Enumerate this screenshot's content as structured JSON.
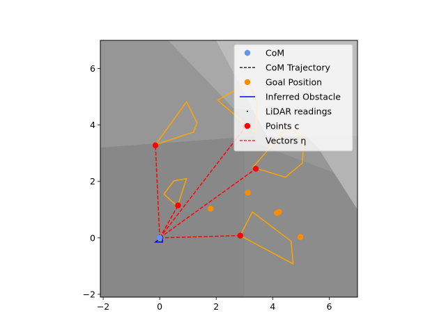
{
  "chart_data": {
    "type": "scatter",
    "xlim": [
      -2.1,
      7.0
    ],
    "ylim": [
      -2.1,
      7.0
    ],
    "xticks": [
      -2,
      0,
      2,
      4,
      6
    ],
    "yticks": [
      -2,
      0,
      2,
      4,
      6
    ],
    "grid": false,
    "legend_position": "top-right",
    "colors": {
      "com": "#6495ed",
      "trajectory": "#000000",
      "goal": "#ff8c00",
      "obstacle": "#ffa500",
      "inferred": "#0000ff",
      "lidar": "#008000",
      "points_c": "#ff0000",
      "vectors": "#ff0000"
    },
    "legend": [
      {
        "label": "CoM",
        "kind": "marker",
        "color": "#6495ed"
      },
      {
        "label": "CoM Trajectory",
        "kind": "dashed",
        "color": "#000000"
      },
      {
        "label": "Goal Position",
        "kind": "marker",
        "color": "#ff8c00"
      },
      {
        "label": "Inferred Obstacle",
        "kind": "solid",
        "color": "#0000ff"
      },
      {
        "label": "LiDAR readings",
        "kind": "dot",
        "color": "#008000"
      },
      {
        "label": "Points c",
        "kind": "marker",
        "color": "#ff0000"
      },
      {
        "label": "Vectors η",
        "kind": "dashed",
        "color": "#ff0000"
      }
    ],
    "com": {
      "x": 0.0,
      "y": 0.0
    },
    "goals": [
      {
        "x": 1.8,
        "y": 1.03
      },
      {
        "x": 3.12,
        "y": 1.6
      },
      {
        "x": 4.15,
        "y": 0.88
      },
      {
        "x": 4.22,
        "y": 0.92
      },
      {
        "x": 4.98,
        "y": 0.03
      }
    ],
    "points_c": [
      {
        "x": -0.15,
        "y": 3.28
      },
      {
        "x": 0.65,
        "y": 1.15
      },
      {
        "x": 3.4,
        "y": 2.45
      },
      {
        "x": 2.85,
        "y": 0.08
      },
      {
        "x": 3.05,
        "y": 3.95
      }
    ],
    "obstacles": [
      [
        [
          -0.15,
          3.3
        ],
        [
          0.95,
          4.82
        ],
        [
          1.32,
          4.08
        ],
        [
          1.2,
          3.75
        ]
      ],
      [
        [
          0.15,
          1.55
        ],
        [
          0.5,
          2.02
        ],
        [
          0.95,
          2.1
        ],
        [
          0.63,
          1.12
        ]
      ],
      [
        [
          2.05,
          4.88
        ],
        [
          3.15,
          5.5
        ],
        [
          3.45,
          4.8
        ],
        [
          3.4,
          3.72
        ]
      ],
      [
        [
          3.3,
          2.5
        ],
        [
          4.45,
          2.15
        ],
        [
          5.05,
          2.65
        ],
        [
          5.1,
          3.5
        ],
        [
          4.55,
          3.95
        ]
      ],
      [
        [
          2.85,
          0.08
        ],
        [
          3.28,
          0.92
        ],
        [
          4.65,
          -0.12
        ],
        [
          4.72,
          -0.92
        ]
      ]
    ],
    "inferred_obstacle": [
      [
        -0.15,
        -0.15
      ],
      [
        0.1,
        -0.15
      ],
      [
        0.1,
        0.05
      ]
    ],
    "background_regions": [
      {
        "color": "#969696",
        "points": [
          [
            -2.1,
            7.0
          ],
          [
            2.0,
            7.0
          ],
          [
            7.0,
            3.6
          ],
          [
            7.0,
            -2.1
          ],
          [
            -2.1,
            -2.1
          ]
        ]
      },
      {
        "color": "#888888",
        "points": [
          [
            -2.1,
            3.2
          ],
          [
            3.4,
            3.6
          ],
          [
            3.0,
            -2.1
          ],
          [
            -2.1,
            -2.1
          ]
        ]
      },
      {
        "color": "#8c8c8c",
        "points": [
          [
            3.0,
            3.5
          ],
          [
            7.0,
            2.0
          ],
          [
            7.0,
            -2.1
          ],
          [
            3.0,
            -2.1
          ]
        ]
      },
      {
        "color": "#a8a8a8",
        "points": [
          [
            0.3,
            7.0
          ],
          [
            2.0,
            7.0
          ],
          [
            3.6,
            4.5
          ],
          [
            2.6,
            4.6
          ]
        ]
      },
      {
        "color": "#bcbcbc",
        "points": [
          [
            2.0,
            7.0
          ],
          [
            7.0,
            7.0
          ],
          [
            7.0,
            3.6
          ],
          [
            3.8,
            3.6
          ]
        ]
      },
      {
        "color": "#b4b4b4",
        "points": [
          [
            5.2,
            3.6
          ],
          [
            7.0,
            3.6
          ],
          [
            7.0,
            1.0
          ],
          [
            5.6,
            3.2
          ]
        ]
      }
    ]
  }
}
